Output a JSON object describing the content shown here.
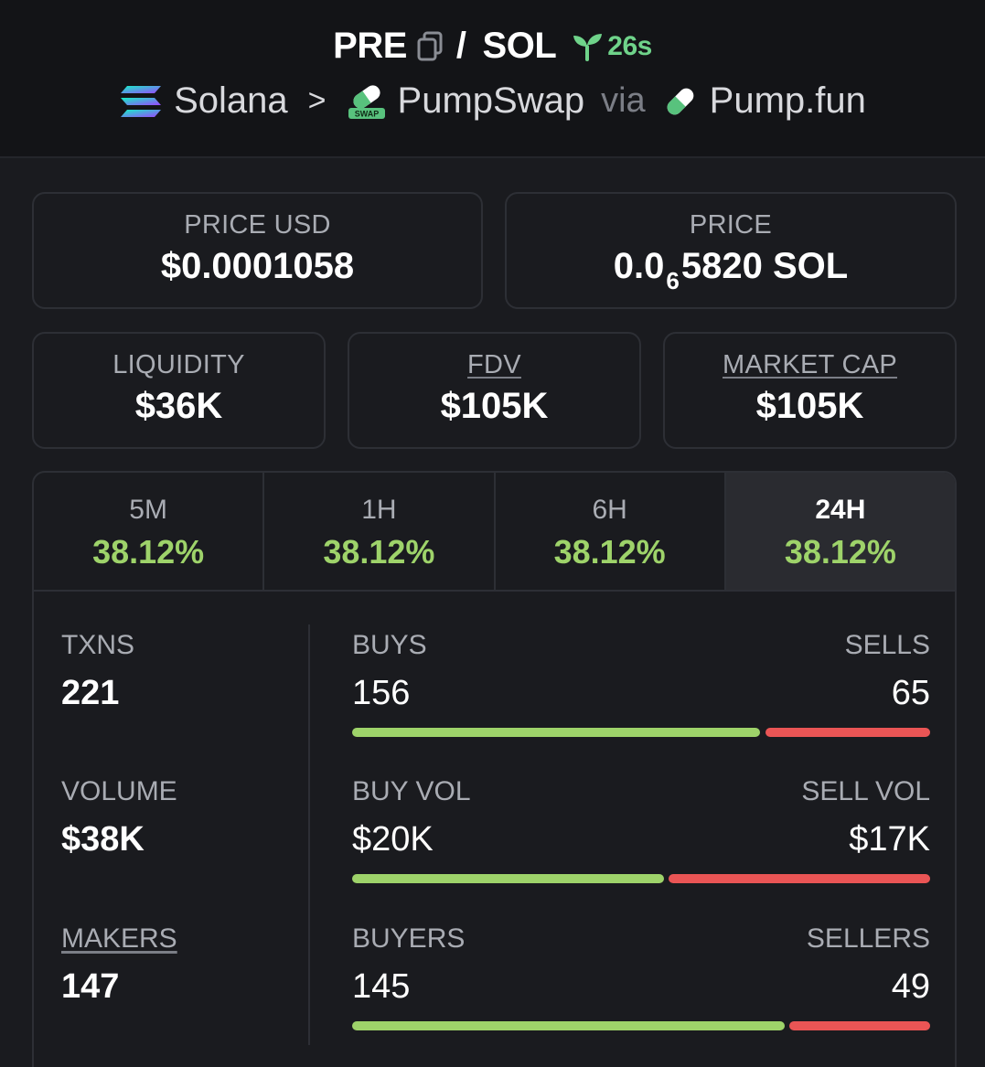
{
  "header": {
    "symbol": "PRE",
    "slash": "/",
    "quote": "SOL",
    "age": "26s",
    "chain": "Solana",
    "chevron": ">",
    "dex": "PumpSwap",
    "dex_badge": "SWAP",
    "via": "via",
    "launchpad": "Pump.fun"
  },
  "prices": {
    "usd_label": "PRICE USD",
    "usd_value": "$0.0001058",
    "native_label": "PRICE",
    "native_prefix": "0.0",
    "native_zeros": "6",
    "native_suffix": "5820 SOL"
  },
  "metrics": {
    "liquidity_label": "LIQUIDITY",
    "liquidity_value": "$36K",
    "fdv_label": "FDV",
    "fdv_value": "$105K",
    "mcap_label": "MARKET CAP",
    "mcap_value": "$105K"
  },
  "timeframes": [
    {
      "label": "5M",
      "value": "38.12%"
    },
    {
      "label": "1H",
      "value": "38.12%"
    },
    {
      "label": "6H",
      "value": "38.12%"
    },
    {
      "label": "24H",
      "value": "38.12%"
    }
  ],
  "stats": {
    "txns_label": "TXNS",
    "txns_value": "221",
    "volume_label": "VOLUME",
    "volume_value": "$38K",
    "makers_label": "MAKERS",
    "makers_value": "147",
    "buys_label": "BUYS",
    "buys_value": "156",
    "sells_label": "SELLS",
    "sells_value": "65",
    "buy_vol_label": "BUY VOL",
    "buy_vol_value": "$20K",
    "sell_vol_label": "SELL VOL",
    "sell_vol_value": "$17K",
    "buyers_label": "BUYERS",
    "buyers_value": "145",
    "sellers_label": "SELLERS",
    "sellers_value": "49"
  },
  "colors": {
    "positive": "#9ed36a",
    "negative": "#ea5555",
    "age_green": "#6fd38a"
  },
  "icons": {
    "copy": "copy-icon",
    "sprout": "sprout-icon",
    "solana": "solana-logo-icon",
    "pumpswap": "pumpswap-logo-icon",
    "pumpfun": "pumpfun-pill-icon"
  }
}
